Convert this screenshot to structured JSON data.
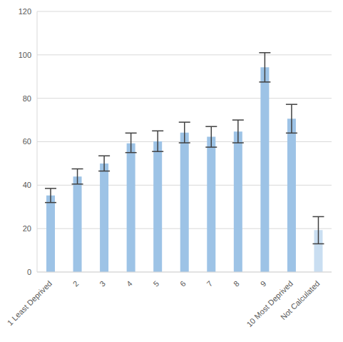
{
  "chart_data": {
    "type": "bar",
    "categories": [
      "1 Least Deprived",
      "2",
      "3",
      "4",
      "5",
      "6",
      "7",
      "8",
      "9",
      "10 Most Deprived",
      "Not Calculated"
    ],
    "values": [
      35.3,
      44,
      50,
      59.3,
      60.2,
      64.2,
      62.3,
      64.7,
      94.3,
      70.6,
      19.3
    ],
    "errors": [
      [
        3.3,
        3.2
      ],
      [
        3.5,
        3.5
      ],
      [
        3.5,
        3.5
      ],
      [
        4.3,
        4.7
      ],
      [
        4.7,
        4.8
      ],
      [
        4.7,
        4.8
      ],
      [
        4.8,
        4.7
      ],
      [
        5.2,
        5.3
      ],
      [
        6.8,
        6.7
      ],
      [
        6.6,
        6.6
      ],
      [
        6.3,
        6.2
      ]
    ],
    "colors": [
      "#9dc3e6",
      "#9dc3e6",
      "#9dc3e6",
      "#9dc3e6",
      "#9dc3e6",
      "#9dc3e6",
      "#9dc3e6",
      "#9dc3e6",
      "#9dc3e6",
      "#9dc3e6",
      "#c9def1"
    ],
    "ylim": [
      0,
      120
    ],
    "yticks": [
      0,
      20,
      40,
      60,
      80,
      100,
      120
    ],
    "grid": true
  }
}
